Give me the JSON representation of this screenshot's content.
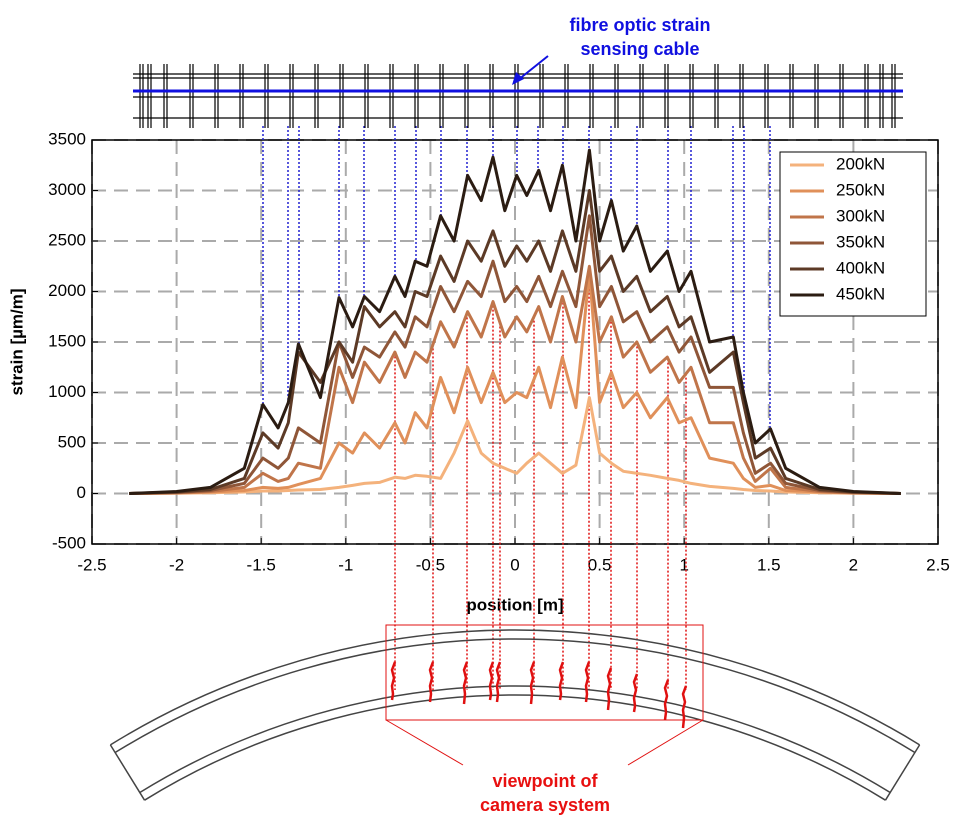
{
  "chart_data": {
    "type": "line",
    "xlabel": "position [m]",
    "ylabel": "strain [µm/m]",
    "xlim": [
      -2.5,
      2.5
    ],
    "xticks": [
      -2.5,
      -2,
      -1.5,
      -1,
      -0.5,
      0,
      0.5,
      1,
      1.5,
      2,
      2.5
    ],
    "ylim": [
      -500,
      3500
    ],
    "yticks": [
      -500,
      0,
      500,
      1000,
      1500,
      2000,
      2500,
      3000,
      3500
    ],
    "grid": true,
    "legend": "upper right",
    "x": [
      -2.28,
      -2.0,
      -1.8,
      -1.6,
      -1.49,
      -1.4,
      -1.34,
      -1.28,
      -1.15,
      -1.04,
      -0.96,
      -0.89,
      -0.8,
      -0.71,
      -0.65,
      -0.59,
      -0.52,
      -0.44,
      -0.36,
      -0.28,
      -0.2,
      -0.13,
      -0.06,
      0.01,
      0.07,
      0.14,
      0.21,
      0.28,
      0.36,
      0.44,
      0.5,
      0.57,
      0.64,
      0.72,
      0.8,
      0.9,
      0.97,
      1.04,
      1.15,
      1.29,
      1.35,
      1.42,
      1.51,
      1.6,
      1.8,
      2.0,
      2.28
    ],
    "series": [
      {
        "name": "200kN",
        "color": "#f4b27c",
        "values": [
          0,
          3,
          8,
          15,
          25,
          25,
          30,
          35,
          40,
          60,
          80,
          100,
          110,
          160,
          150,
          180,
          170,
          150,
          400,
          720,
          400,
          300,
          250,
          200,
          300,
          400,
          300,
          200,
          280,
          950,
          400,
          300,
          220,
          200,
          180,
          150,
          130,
          100,
          70,
          50,
          40,
          30,
          25,
          15,
          8,
          3,
          0
        ]
      },
      {
        "name": "250kN",
        "color": "#e0905a",
        "values": [
          0,
          5,
          15,
          30,
          60,
          50,
          60,
          90,
          150,
          500,
          400,
          600,
          450,
          700,
          500,
          800,
          650,
          1150,
          800,
          1250,
          900,
          1200,
          900,
          1000,
          950,
          1250,
          850,
          1350,
          850,
          2200,
          900,
          1200,
          850,
          1000,
          750,
          950,
          700,
          750,
          350,
          300,
          150,
          60,
          80,
          30,
          15,
          5,
          0
        ]
      },
      {
        "name": "300kN",
        "color": "#c0754a",
        "values": [
          0,
          8,
          20,
          60,
          200,
          120,
          150,
          300,
          250,
          1250,
          900,
          1300,
          1100,
          1400,
          1150,
          1400,
          1300,
          1700,
          1450,
          1800,
          1550,
          1900,
          1550,
          1750,
          1600,
          1850,
          1500,
          1950,
          1500,
          2250,
          1500,
          1750,
          1350,
          1500,
          1200,
          1350,
          1100,
          1250,
          700,
          700,
          350,
          120,
          250,
          60,
          20,
          8,
          0
        ]
      },
      {
        "name": "350kN",
        "color": "#8f5638",
        "values": [
          0,
          10,
          30,
          100,
          350,
          250,
          350,
          650,
          500,
          1500,
          1150,
          1450,
          1350,
          1600,
          1450,
          1750,
          1650,
          2050,
          1800,
          2100,
          1950,
          2300,
          1900,
          2050,
          1900,
          2150,
          1850,
          2200,
          1850,
          2750,
          1850,
          2050,
          1700,
          1800,
          1500,
          1650,
          1400,
          1550,
          1050,
          1050,
          600,
          200,
          300,
          100,
          30,
          10,
          0
        ]
      },
      {
        "name": "400kN",
        "color": "#5c3a26",
        "values": [
          0,
          15,
          40,
          150,
          600,
          450,
          700,
          1400,
          1100,
          1500,
          1300,
          1850,
          1650,
          1800,
          1650,
          2000,
          1950,
          2350,
          2100,
          2500,
          2300,
          2600,
          2250,
          2450,
          2300,
          2500,
          2200,
          2600,
          2200,
          3000,
          2200,
          2350,
          2000,
          2150,
          1800,
          1950,
          1650,
          1750,
          1200,
          1400,
          900,
          350,
          450,
          150,
          40,
          15,
          0
        ]
      },
      {
        "name": "450kN",
        "color": "#2b1c12",
        "values": [
          0,
          20,
          60,
          250,
          880,
          650,
          900,
          1480,
          950,
          1940,
          1650,
          1950,
          1800,
          2150,
          1950,
          2300,
          2250,
          2750,
          2500,
          3150,
          2900,
          3330,
          2800,
          3150,
          2950,
          3200,
          2800,
          3250,
          2500,
          3400,
          2500,
          2900,
          2400,
          2650,
          2200,
          2400,
          2000,
          2200,
          1500,
          1550,
          1000,
          500,
          640,
          250,
          60,
          20,
          0
        ]
      }
    ],
    "annotations": [
      {
        "lines": [
          "fibre optic strain",
          "sensing cable"
        ],
        "color": "#1010e0"
      },
      {
        "lines": [
          "viewpoint of",
          "camera system"
        ],
        "color": "#e81010"
      }
    ]
  }
}
